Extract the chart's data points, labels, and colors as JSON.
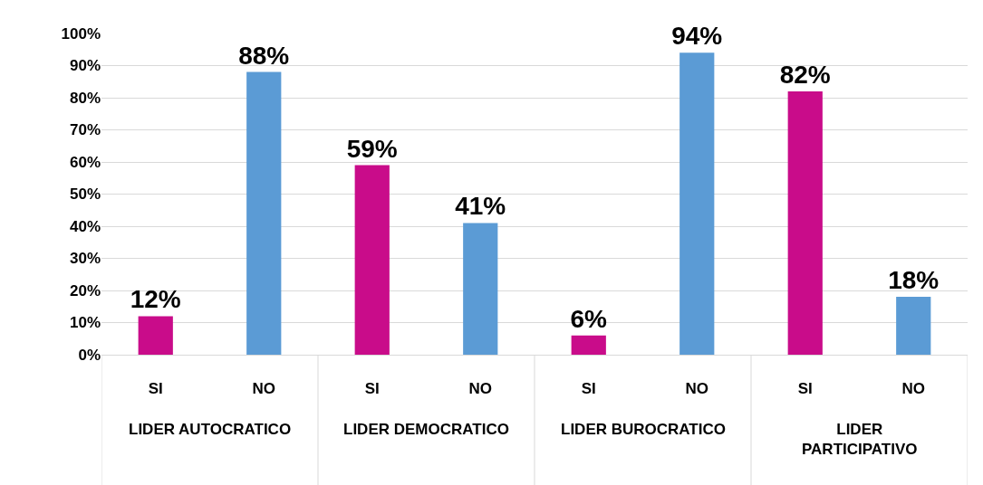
{
  "chart_data": {
    "type": "bar",
    "categories": [
      "SI",
      "NO",
      "SI",
      "NO",
      "SI",
      "NO",
      "SI",
      "NO"
    ],
    "values": [
      12,
      88,
      59,
      41,
      6,
      94,
      82,
      18
    ],
    "colors": [
      "#c90c8a",
      "#5b9bd5",
      "#c90c8a",
      "#5b9bd5",
      "#c90c8a",
      "#5b9bd5",
      "#c90c8a",
      "#5b9bd5"
    ],
    "value_labels": [
      "12%",
      "88%",
      "59%",
      "41%",
      "6%",
      "94%",
      "82%",
      "18%"
    ],
    "annotations": [
      "LIDER AUTOCRATICO",
      "LIDER DEMOCRATICO",
      "LIDER BUROCRATICO",
      "LIDER PARTICIPATIVO"
    ],
    "ylim": [
      0,
      100
    ],
    "yticks": [
      {
        "value": 0,
        "label": "0%"
      },
      {
        "value": 10,
        "label": "10%"
      },
      {
        "value": 20,
        "label": "20%"
      },
      {
        "value": 30,
        "label": "30%"
      },
      {
        "value": 40,
        "label": "40%"
      },
      {
        "value": 50,
        "label": "50%"
      },
      {
        "value": 60,
        "label": "60%"
      },
      {
        "value": 70,
        "label": "70%"
      },
      {
        "value": 80,
        "label": "80%"
      },
      {
        "value": 90,
        "label": "90%"
      },
      {
        "value": 100,
        "label": "100%"
      }
    ],
    "grid": "y"
  }
}
